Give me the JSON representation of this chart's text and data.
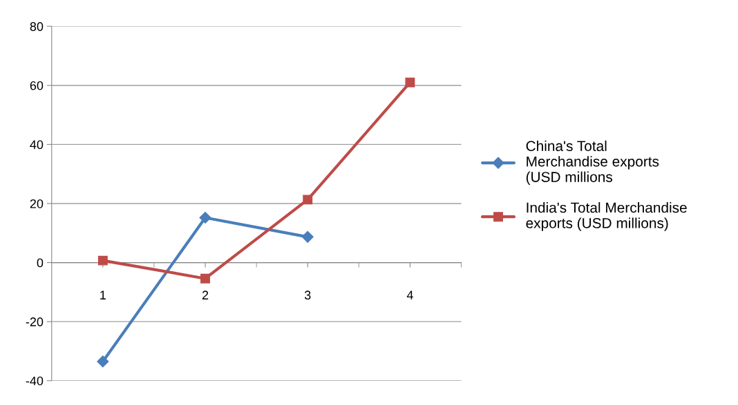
{
  "chart_data": {
    "type": "line",
    "categories": [
      "1",
      "2",
      "3",
      "4"
    ],
    "series": [
      {
        "name": "China's Total\nMerchandise exports\n(USD millions",
        "color": "#4a7ebb",
        "marker": "diamond",
        "values": [
          -33.5,
          15.2,
          8.7,
          null
        ]
      },
      {
        "name": "India's Total Merchandise\nexports (USD millions)",
        "color": "#be4b48",
        "marker": "square",
        "values": [
          0.7,
          -5.4,
          21.3,
          61
        ]
      }
    ],
    "ylim": [
      -40,
      80
    ],
    "yticks": [
      -40,
      -20,
      0,
      20,
      40,
      60,
      80
    ],
    "grid": "y",
    "legend": "right",
    "line_style": "solid"
  }
}
